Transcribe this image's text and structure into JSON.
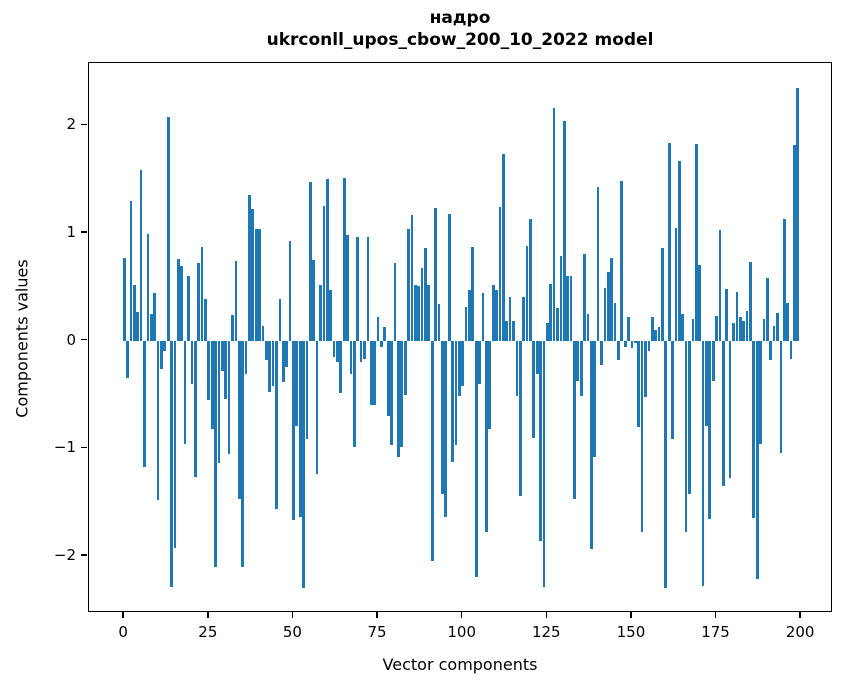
{
  "figure": {
    "title_line1": "надро",
    "title_line2": "ukrconll_upos_cbow_200_10_2022 model",
    "xlabel": "Vector components",
    "ylabel": "Components values"
  },
  "chart_data": {
    "type": "bar",
    "title": "надро\nukrconll_upos_cbow_200_10_2022 model",
    "xlabel": "Vector components",
    "ylabel": "Components values",
    "x_start": 0,
    "n_bars": 200,
    "bar_color": "#1f77b4",
    "bar_width_data_units": 0.8,
    "grid": false,
    "legend": null,
    "xticks": [
      0,
      25,
      50,
      75,
      100,
      125,
      150,
      175,
      200
    ],
    "yticks": [
      -2,
      -1,
      0,
      1,
      2
    ],
    "xlim": [
      -10.4,
      209.4
    ],
    "ylim": [
      -2.53,
      2.58
    ],
    "values": [
      0.77,
      -0.35,
      1.3,
      0.52,
      0.27,
      1.59,
      -1.17,
      0.99,
      0.25,
      0.44,
      -1.48,
      -0.26,
      -0.1,
      2.08,
      -2.29,
      -1.93,
      0.76,
      0.69,
      -0.96,
      0.6,
      -0.4,
      -1.27,
      0.72,
      0.87,
      0.39,
      -0.55,
      -0.82,
      -2.1,
      -1.14,
      -0.28,
      -0.54,
      -1.05,
      0.24,
      0.74,
      -1.47,
      -2.1,
      -0.31,
      1.35,
      1.22,
      1.04,
      1.04,
      0.14,
      -0.18,
      -0.48,
      -0.42,
      -1.56,
      0.39,
      -0.38,
      -0.24,
      0.93,
      -1.67,
      -0.79,
      -1.64,
      -2.3,
      -0.91,
      1.47,
      0.75,
      -1.24,
      0.52,
      1.25,
      1.5,
      0.47,
      -0.15,
      -0.2,
      -0.49,
      1.51,
      0.98,
      -0.31,
      -0.99,
      0.96,
      -0.2,
      -0.17,
      0.96,
      -0.6,
      -0.6,
      0.22,
      -0.06,
      0.13,
      -0.7,
      -0.97,
      0.72,
      -1.08,
      -0.99,
      -0.5,
      1.04,
      1.17,
      0.52,
      0.51,
      0.68,
      0.86,
      0.52,
      -2.05,
      1.23,
      0.34,
      -1.42,
      -1.64,
      1.18,
      -1.13,
      -0.97,
      -0.51,
      -0.42,
      0.31,
      0.47,
      0.87,
      -2.2,
      -0.4,
      0.44,
      -1.78,
      -0.82,
      0.52,
      0.47,
      1.24,
      1.73,
      0.18,
      0.41,
      0.18,
      -0.51,
      -1.44,
      0.41,
      0.88,
      1.13,
      -0.9,
      -0.31,
      -1.86,
      -2.29,
      0.16,
      0.53,
      2.16,
      0.3,
      0.79,
      2.04,
      0.6,
      0.6,
      -1.47,
      -0.37,
      -0.51,
      0.81,
      0.25,
      -1.94,
      -1.08,
      1.43,
      -0.23,
      0.49,
      0.64,
      0.77,
      0.35,
      -0.18,
      1.48,
      -0.06,
      0.22,
      -0.07,
      -0.02,
      -0.8,
      -1.78,
      -0.52,
      -0.1,
      0.22,
      0.1,
      0.13,
      0.86,
      -2.3,
      1.84,
      -0.91,
      1.05,
      1.67,
      0.25,
      -1.78,
      -1.42,
      0.2,
      1.83,
      0.7,
      -2.28,
      -0.79,
      -1.66,
      -0.37,
      0.23,
      1.03,
      -1.35,
      0.48,
      -1.28,
      0.16,
      0.45,
      0.22,
      0.18,
      0.28,
      0.73,
      -1.65,
      -2.21,
      -0.96,
      0.2,
      0.58,
      -0.18,
      0.14,
      0.26,
      -1.04,
      1.13,
      0.35,
      -0.17,
      1.82,
      2.35
    ]
  }
}
